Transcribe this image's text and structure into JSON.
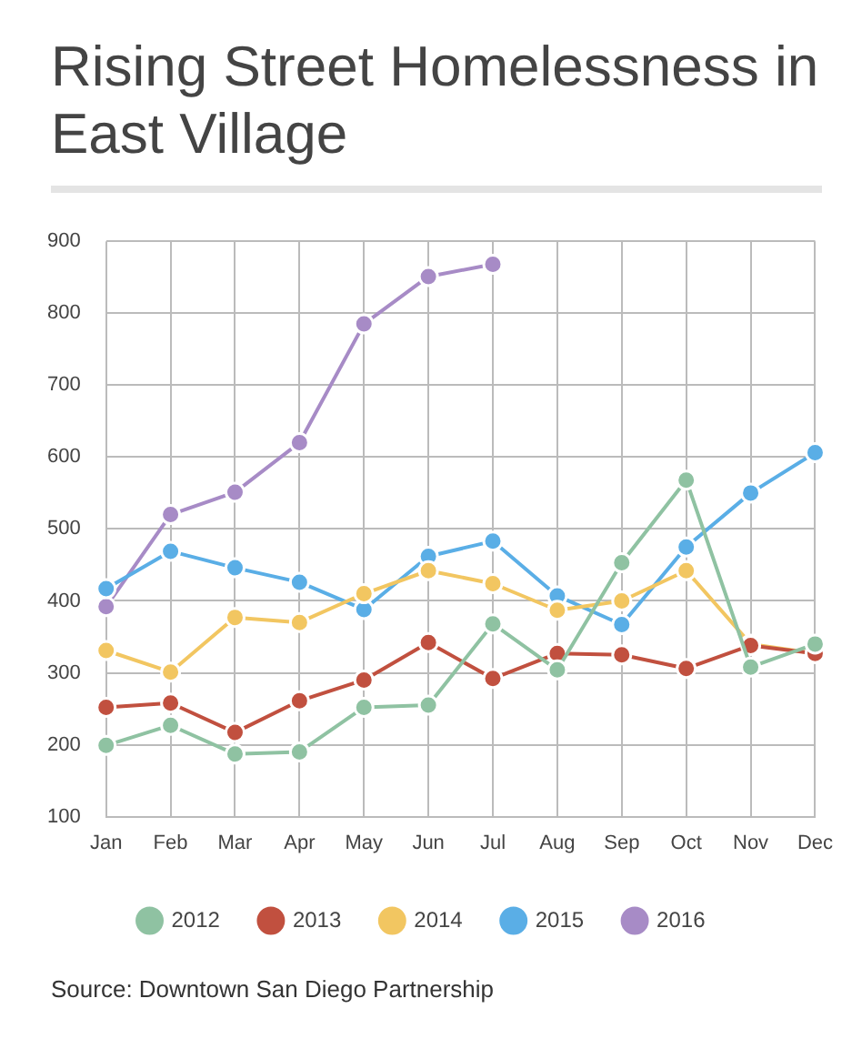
{
  "chart_data": {
    "type": "line",
    "title": "Rising Street Homelessness in East Village",
    "categories": [
      "Jan",
      "Feb",
      "Mar",
      "Apr",
      "May",
      "Jun",
      "Jul",
      "Aug",
      "Sep",
      "Oct",
      "Nov",
      "Dec"
    ],
    "series": [
      {
        "name": "2012",
        "color": "#8fc2a2",
        "values": [
          199,
          227,
          187,
          190,
          252,
          255,
          368,
          304,
          453,
          568,
          308,
          340
        ]
      },
      {
        "name": "2013",
        "color": "#c1503f",
        "values": [
          252,
          258,
          217,
          261,
          290,
          342,
          292,
          327,
          325,
          306,
          338,
          327
        ]
      },
      {
        "name": "2014",
        "color": "#f2c661",
        "values": [
          331,
          301,
          377,
          370,
          410,
          442,
          424,
          387,
          400,
          442,
          340,
          327
        ]
      },
      {
        "name": "2015",
        "color": "#5aaee6",
        "values": [
          417,
          469,
          446,
          426,
          388,
          462,
          483,
          407,
          367,
          475,
          550,
          606
        ]
      },
      {
        "name": "2016",
        "color": "#a78bc6",
        "values": [
          392,
          520,
          551,
          620,
          785,
          851,
          868,
          null,
          null,
          null,
          null,
          null
        ]
      }
    ],
    "ylim": [
      100,
      900
    ],
    "yticks": [
      100,
      200,
      300,
      400,
      500,
      600,
      700,
      800,
      900
    ],
    "grid": true,
    "legend": "bottom",
    "marker": "circle",
    "line_style": "solid",
    "annotations": [
      "Source: Downtown San Diego Partnership"
    ]
  }
}
